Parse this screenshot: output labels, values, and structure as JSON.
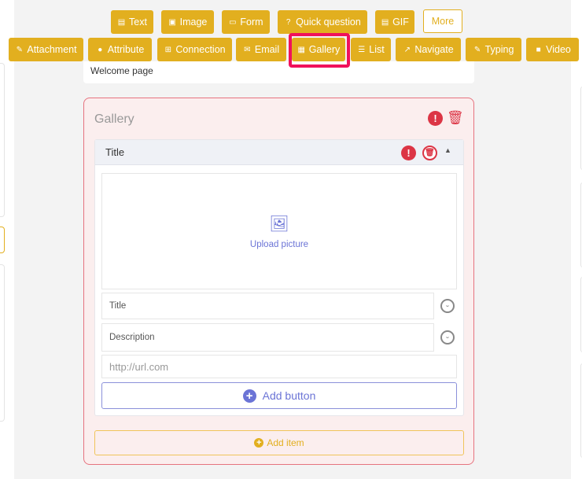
{
  "toolbar": {
    "row1": [
      {
        "label": "Text",
        "icon": "file-text-icon"
      },
      {
        "label": "Image",
        "icon": "image-icon"
      },
      {
        "label": "Form",
        "icon": "form-icon"
      },
      {
        "label": "Quick question",
        "icon": "question-circle-icon"
      },
      {
        "label": "GIF",
        "icon": "gif-file-icon"
      },
      {
        "label": "More"
      }
    ],
    "row2": [
      {
        "label": "Attachment",
        "icon": "paperclip-icon"
      },
      {
        "label": "Attribute",
        "icon": "attribute-icon"
      },
      {
        "label": "Connection",
        "icon": "table-icon"
      },
      {
        "label": "Email",
        "icon": "envelope-icon"
      },
      {
        "label": "Gallery",
        "icon": "grid-icon",
        "highlighted": true
      },
      {
        "label": "List",
        "icon": "list-icon"
      },
      {
        "label": "Navigate",
        "icon": "external-link-icon"
      },
      {
        "label": "Typing",
        "icon": "edit-icon"
      },
      {
        "label": "Video",
        "icon": "video-icon"
      }
    ]
  },
  "colors": {
    "accent": "#e2af1f",
    "highlight": "#f0115b",
    "error": "#dc3545",
    "primary": "#6b74d6"
  },
  "welcome": {
    "text": "Welcome page"
  },
  "gallery": {
    "title": "Gallery",
    "item": {
      "title": "Title",
      "upload_label": "Upload picture",
      "title_placeholder": "Title",
      "description_placeholder": "Description",
      "url_placeholder": "http://url.com",
      "add_button_label": "Add button"
    },
    "add_item_label": "Add item"
  }
}
